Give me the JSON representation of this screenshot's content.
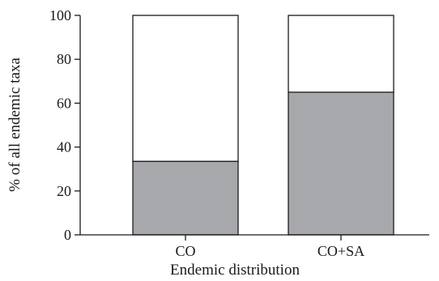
{
  "chart_data": {
    "type": "bar",
    "stacked": true,
    "categories": [
      "CO",
      "CO+SA"
    ],
    "series": [
      {
        "values": [
          33.5,
          65
        ],
        "color": "#a7a8ab"
      },
      {
        "values": [
          66.5,
          35
        ],
        "color": "#ffffff"
      }
    ],
    "xlabel": "Endemic distribution",
    "ylabel": "% of all endemic taxa",
    "ylim": [
      0,
      100
    ],
    "yticks": [
      0,
      20,
      40,
      60,
      80,
      100
    ],
    "grid": false,
    "legend": "none"
  }
}
